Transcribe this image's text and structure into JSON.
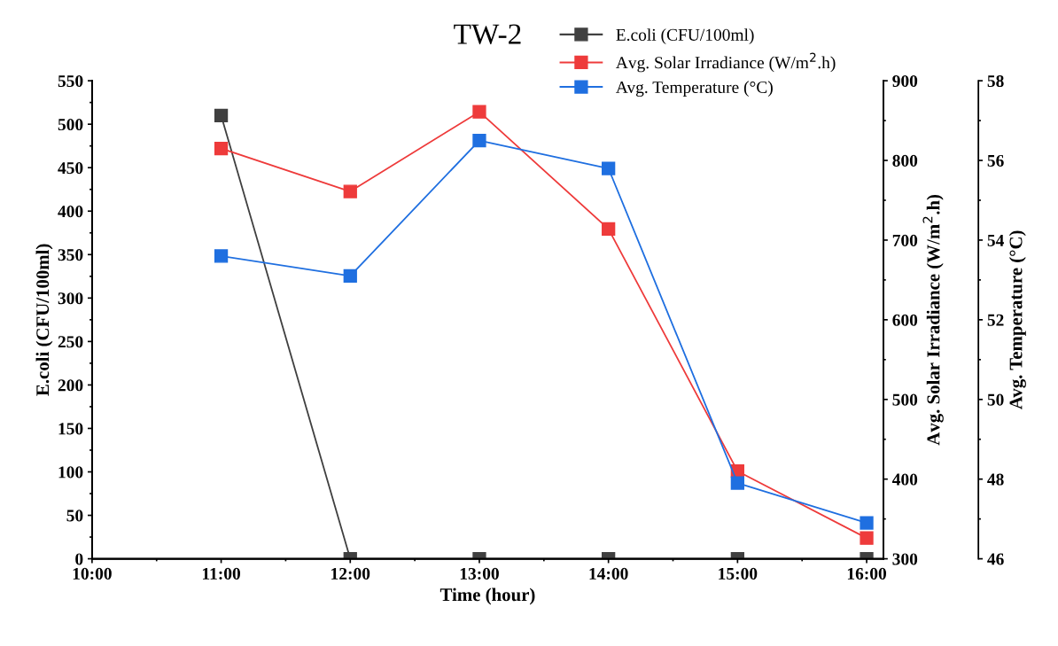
{
  "chart_data": {
    "type": "line",
    "title": "TW-2",
    "xlabel": "Time (hour)",
    "ylabel": "E.coli (CFU/100ml)",
    "y2label": "Avg. Solar Irradiance (W/m$^{2}$.h)",
    "y3label": "Avg. Temperature (°C)",
    "x": [
      11,
      12,
      13,
      14,
      15,
      16
    ],
    "xlim": [
      10,
      16.13
    ],
    "xticks": [
      {
        "value": 10,
        "label": "10:00"
      },
      {
        "value": 11,
        "label": "11:00"
      },
      {
        "value": 12,
        "label": "12:00"
      },
      {
        "value": 13,
        "label": "13:00"
      },
      {
        "value": 14,
        "label": "14:00"
      },
      {
        "value": 15,
        "label": "15:00"
      },
      {
        "value": 16,
        "label": "16:00"
      }
    ],
    "ylim": [
      0,
      550
    ],
    "yticks": [
      0,
      50,
      100,
      150,
      200,
      250,
      300,
      350,
      400,
      450,
      500,
      550
    ],
    "y2lim": [
      300,
      900
    ],
    "y2ticks": [
      300,
      400,
      500,
      600,
      700,
      800,
      900
    ],
    "y3lim": [
      46,
      58
    ],
    "y3ticks": [
      46,
      48,
      50,
      52,
      54,
      56,
      58
    ],
    "marker": "square",
    "legend": "top",
    "grid": false,
    "series": [
      {
        "name": "E.coli (CFU/100ml)",
        "color": "#404040",
        "values": [
          510,
          0,
          0,
          0,
          0,
          0
        ]
      },
      {
        "name": "Avg. Solar Irradiance (W/m$^{2}$.h)",
        "color": "#ee3b3b",
        "axis": "y2",
        "values": [
          815,
          761,
          861,
          714,
          410,
          326
        ]
      },
      {
        "name": "Avg. Temperature (°C)",
        "color": "#1f6fe0",
        "axis": "y3",
        "values": [
          53.6,
          53.1,
          56.5,
          55.8,
          47.9,
          46.9
        ]
      }
    ]
  }
}
